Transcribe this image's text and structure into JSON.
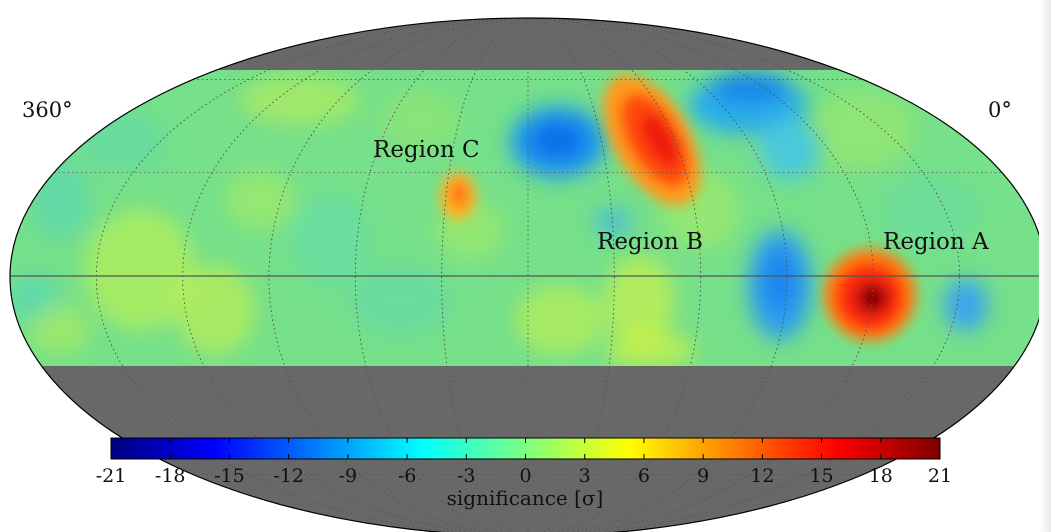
{
  "chart_data": {
    "type": "heatmap",
    "projection": "mollweide",
    "grid": true,
    "longitude_labels": {
      "left": "360°",
      "right": "0°"
    },
    "regions": [
      {
        "label": "Region A",
        "peak_sigma": 21,
        "sign": "positive"
      },
      {
        "label": "Region B",
        "peak_sigma": 17,
        "sign": "positive"
      },
      {
        "label": "Region C",
        "peak_sigma": 10,
        "sign": "positive"
      }
    ],
    "colorbar": {
      "label": "significance [σ]",
      "min": -21,
      "max": 21,
      "ticks": [
        "-21",
        "-18",
        "-15",
        "-12",
        "-9",
        "-6",
        "-3",
        "0",
        "3",
        "6",
        "9",
        "12",
        "15",
        "18",
        "21"
      ],
      "colormap": "jet"
    },
    "colors": {
      "masked": "#686868",
      "background": "#76e08a",
      "jet": [
        "#00007f",
        "#0000ff",
        "#007fff",
        "#00ffff",
        "#7fff7f",
        "#ffff00",
        "#ff7f00",
        "#ff0000",
        "#7f0000"
      ]
    }
  }
}
